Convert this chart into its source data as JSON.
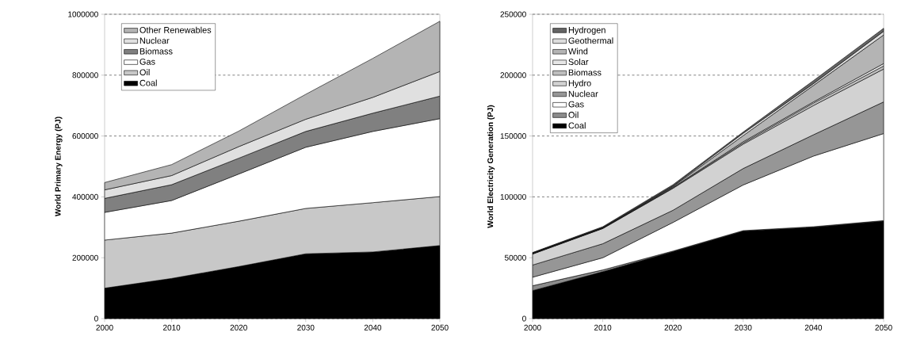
{
  "chart_data": [
    {
      "type": "area",
      "stacked": true,
      "ylabel": "World Primary Energy (PJ)",
      "x": [
        2000,
        2010,
        2020,
        2030,
        2040,
        2050
      ],
      "xlim": [
        2000,
        2050
      ],
      "xticks": [
        2000,
        2010,
        2020,
        2030,
        2040,
        2050
      ],
      "ylim": [
        0,
        1000000
      ],
      "yticks": [
        0,
        200000,
        400000,
        600000,
        800000,
        1000000
      ],
      "grid": "y",
      "legend": "top left",
      "series": [
        {
          "name": "Coal",
          "color": "#000000",
          "values": [
            100000,
            132000,
            171000,
            213000,
            219000,
            240000
          ]
        },
        {
          "name": "Oil",
          "color": "#c8c8c8",
          "values": [
            158000,
            149000,
            149000,
            149000,
            162000,
            161000
          ]
        },
        {
          "name": "Gas",
          "color": "#ffffff",
          "values": [
            91000,
            107000,
            155000,
            201000,
            234000,
            256000
          ]
        },
        {
          "name": "Biomass",
          "color": "#808080",
          "values": [
            46000,
            52000,
            52000,
            52000,
            60000,
            74000
          ]
        },
        {
          "name": "Nuclear",
          "color": "#e0e0e0",
          "values": [
            28000,
            30000,
            38000,
            40000,
            52000,
            81000
          ]
        },
        {
          "name": "Other Renewables",
          "color": "#b4b4b4",
          "values": [
            24000,
            36000,
            51000,
            82000,
            128000,
            165000
          ]
        }
      ]
    },
    {
      "type": "area",
      "stacked": true,
      "ylabel": "World Electricity Generation (PJ)",
      "x": [
        2000,
        2010,
        2020,
        2030,
        2040,
        2050
      ],
      "xlim": [
        2000,
        2050
      ],
      "xticks": [
        2000,
        2010,
        2020,
        2030,
        2040,
        2050
      ],
      "ylim": [
        0,
        250000
      ],
      "yticks": [
        0,
        50000,
        100000,
        150000,
        200000,
        250000
      ],
      "grid": "y",
      "legend": "top left",
      "series": [
        {
          "name": "Coal",
          "color": "#000000",
          "values": [
            23000,
            38500,
            55000,
            72000,
            75000,
            80000
          ]
        },
        {
          "name": "Oil",
          "color": "#8c8c8c",
          "values": [
            4000,
            1500,
            500,
            300,
            500,
            500
          ]
        },
        {
          "name": "Gas",
          "color": "#ffffff",
          "values": [
            7000,
            10000,
            23500,
            37500,
            58000,
            71500
          ]
        },
        {
          "name": "Nuclear",
          "color": "#969696",
          "values": [
            10000,
            11500,
            10000,
            13500,
            17500,
            26000
          ]
        },
        {
          "name": "Hydro",
          "color": "#d2d2d2",
          "values": [
            9000,
            12500,
            18000,
            20000,
            24000,
            27000
          ]
        },
        {
          "name": "Biomass",
          "color": "#bebebe",
          "values": [
            300,
            300,
            500,
            1000,
            2000,
            2500
          ]
        },
        {
          "name": "Solar",
          "color": "#e6e6e6",
          "values": [
            100,
            100,
            300,
            1000,
            1000,
            2000
          ]
        },
        {
          "name": "Wind",
          "color": "#b4b4b4",
          "values": [
            300,
            300,
            700,
            5000,
            13500,
            23500
          ]
        },
        {
          "name": "Geothermal",
          "color": "#dcdcdc",
          "values": [
            200,
            200,
            500,
            2000,
            1500,
            3000
          ]
        },
        {
          "name": "Hydrogen",
          "color": "#646464",
          "values": [
            400,
            600,
            1000,
            1000,
            2500,
            2500
          ]
        }
      ]
    }
  ]
}
